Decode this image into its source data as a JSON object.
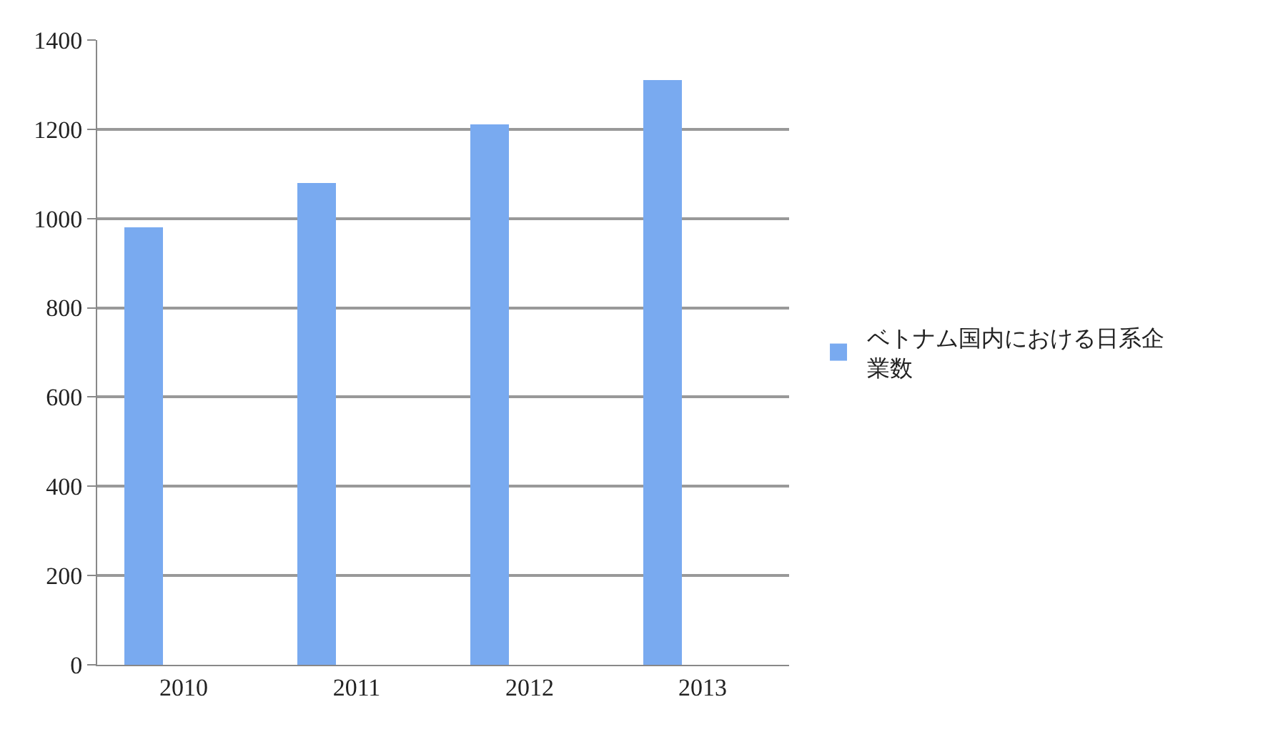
{
  "chart_data": {
    "type": "bar",
    "categories": [
      "2010",
      "2011",
      "2012",
      "2013"
    ],
    "series": [
      {
        "name": "ベトナム国内における日系企業数",
        "color": "#79aaf0",
        "values": [
          980,
          1080,
          1210,
          1310
        ]
      }
    ],
    "ylim": [
      0,
      1400
    ],
    "yticks": [
      0,
      200,
      400,
      600,
      800,
      1000,
      1200,
      1400
    ],
    "grid": "y",
    "legend": "right"
  }
}
